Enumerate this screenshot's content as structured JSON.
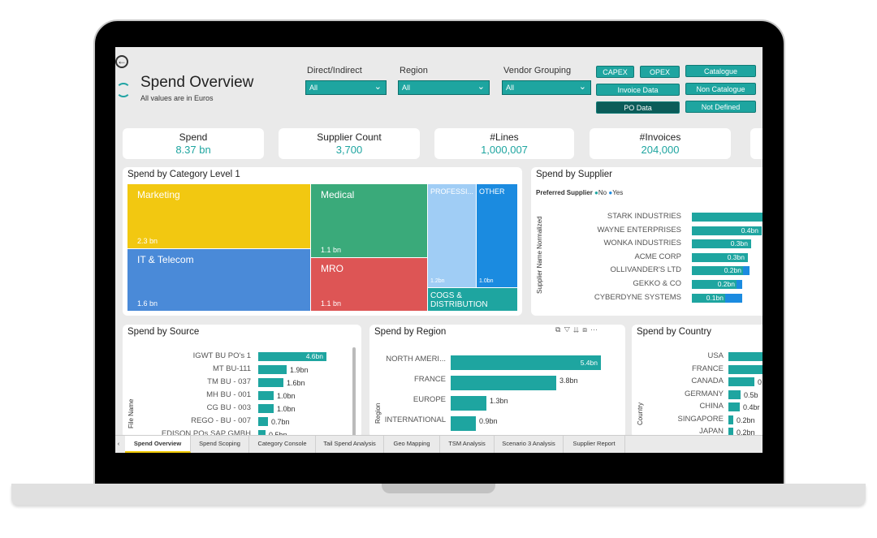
{
  "header": {
    "title": "Spend Overview",
    "subtitle": "All values are in Euros"
  },
  "filters": [
    {
      "label": "Direct/Indirect",
      "value": "All"
    },
    {
      "label": "Region",
      "value": "All"
    },
    {
      "label": "Vendor Grouping",
      "value": "All"
    }
  ],
  "toggle_buttons": [
    "CAPEX",
    "OPEX",
    "Catalogue",
    "Invoice Data",
    "Non Catalogue",
    "PO Data",
    "Not Defined"
  ],
  "kpis": [
    {
      "label": "Spend",
      "value": "8.37 bn"
    },
    {
      "label": "Supplier Count",
      "value": "3,700"
    },
    {
      "label": "#Lines",
      "value": "1,000,007"
    },
    {
      "label": "#Invoices",
      "value": "204,000"
    }
  ],
  "category": {
    "title": "Spend by Category Level 1",
    "tiles": [
      {
        "name": "Marketing",
        "value": "2.3 bn",
        "color": "#f2c811"
      },
      {
        "name": "Medical",
        "value": "1.1 bn",
        "color": "#3aaa7a"
      },
      {
        "name": "PROFESSI...",
        "value": "1.2bn",
        "color": "#a0cdf5"
      },
      {
        "name": "OTHER",
        "value": "1.0bn",
        "color": "#1b8be0"
      },
      {
        "name": "IT & Telecom",
        "value": "1.6 bn",
        "color": "#4a8ad8"
      },
      {
        "name": "MRO",
        "value": "1.1 bn",
        "color": "#dd5555"
      },
      {
        "name": "COGS & DISTRIBUTION",
        "value": "",
        "color": "#1ea5a0"
      }
    ]
  },
  "supplier": {
    "title": "Spend by Supplier",
    "legend_title": "Preferred Supplier",
    "legend_no": "No",
    "legend_yes": "Yes",
    "axis_label": "Supplier Name Normalized",
    "rows": [
      {
        "name": "STARK INDUSTRIES",
        "value": ""
      },
      {
        "name": "WAYNE ENTERPRISES",
        "value": "0.4bn"
      },
      {
        "name": "WONKA INDUSTRIES",
        "value": "0.3bn"
      },
      {
        "name": "ACME CORP",
        "value": "0.3bn"
      },
      {
        "name": "OLLIVANDER'S LTD",
        "value": "0.2bn"
      },
      {
        "name": "GEKKO & CO",
        "value": "0.2bn"
      },
      {
        "name": "CYBERDYNE SYSTEMS",
        "value": "0.1bn"
      }
    ]
  },
  "source": {
    "title": "Spend by Source",
    "axis_label": "File Name",
    "rows": [
      {
        "name": "IGWT BU PO's 1",
        "value": "4.6bn"
      },
      {
        "name": "MT BU-111",
        "value": "1.9bn"
      },
      {
        "name": "TM BU - 037",
        "value": "1.6bn"
      },
      {
        "name": "MH BU - 001",
        "value": "1.0bn"
      },
      {
        "name": "CG BU - 003",
        "value": "1.0bn"
      },
      {
        "name": "REGO - BU - 007",
        "value": "0.7bn"
      },
      {
        "name": "EDISON POs SAP GMBH",
        "value": "0.5bn"
      }
    ]
  },
  "region": {
    "title": "Spend by Region",
    "axis_label": "Region",
    "rows": [
      {
        "name": "NORTH AMERI...",
        "value": "5.4bn"
      },
      {
        "name": "FRANCE",
        "value": "3.8bn"
      },
      {
        "name": "EUROPE",
        "value": "1.3bn"
      },
      {
        "name": "INTERNATIONAL",
        "value": "0.9bn"
      }
    ]
  },
  "country": {
    "title": "Spend by Country",
    "axis_label": "Country",
    "rows": [
      {
        "name": "USA",
        "value": ""
      },
      {
        "name": "FRANCE",
        "value": ""
      },
      {
        "name": "CANADA",
        "value": "0"
      },
      {
        "name": "GERMANY",
        "value": "0.5b"
      },
      {
        "name": "CHINA",
        "value": "0.4br"
      },
      {
        "name": "SINGAPORE",
        "value": "0.2bn"
      },
      {
        "name": "JAPAN",
        "value": "0.2bn"
      }
    ]
  },
  "tabs": [
    "Spend Overview",
    "Spend Scoping",
    "Category Console",
    "Tail Spend Analysis",
    "Geo Mapping",
    "TSM Analysis",
    "Scenario 3 Analysis",
    "Supplier Report"
  ],
  "colors": {
    "accent": "#1ea5a0",
    "blue": "#1b8be0",
    "dark_btn": "#0b5c59"
  }
}
